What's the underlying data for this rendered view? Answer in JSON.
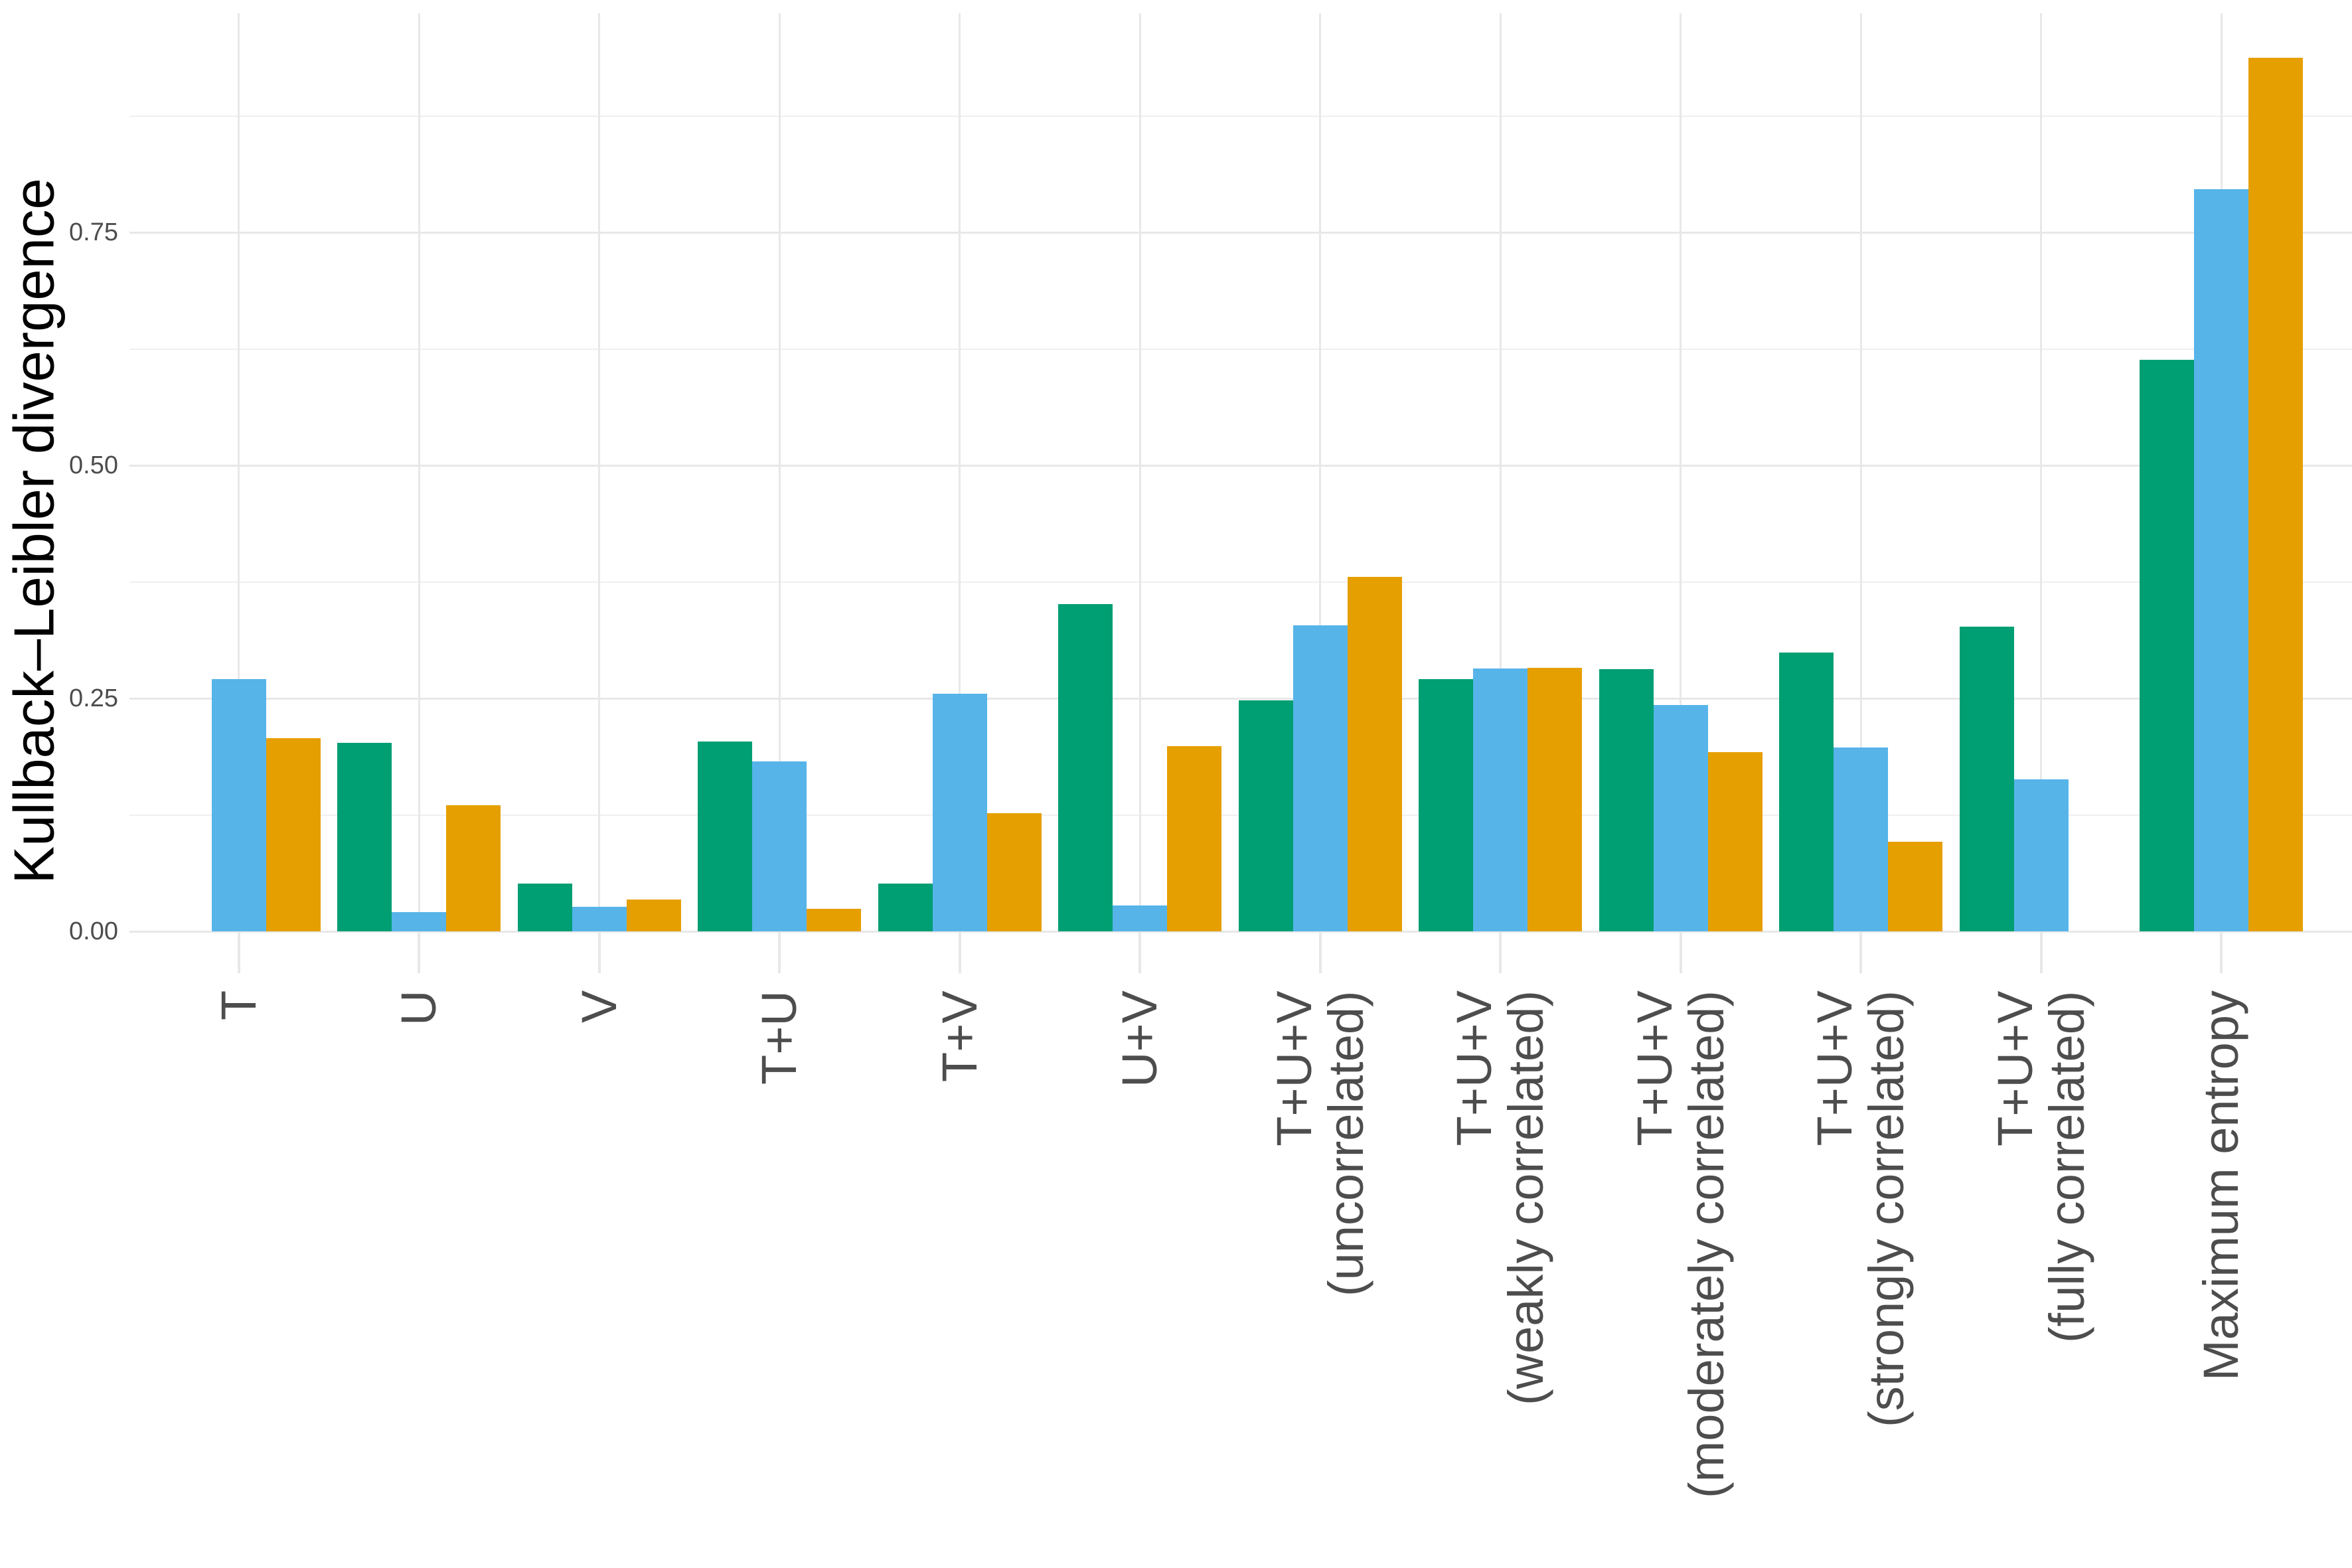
{
  "chart_data": {
    "type": "bar",
    "title": "",
    "ylabel": "Kullback–Leibler divergence",
    "xlabel": "",
    "bar_orientation": "vertical",
    "x_tick_label_rotation_deg": 90,
    "categories": [
      "T",
      "U",
      "V",
      "T+U",
      "T+V",
      "U+V",
      "T+U+V\n(uncorrelated)",
      "T+U+V\n(weakly correlated)",
      "T+U+V\n(moderately correlated)",
      "T+U+V\n(strongly correlated)",
      "T+U+V\n(fully correlated)",
      "Maximum entropy"
    ],
    "series": [
      {
        "name": "green",
        "color": "#009E73",
        "values": [
          0,
          0.202,
          0.051,
          0.204,
          0.051,
          0.351,
          0.248,
          0.271,
          0.281,
          0.299,
          0.327,
          0.613
        ]
      },
      {
        "name": "blue",
        "color": "#56B4E9",
        "values": [
          0.271,
          0.021,
          0.026,
          0.182,
          0.255,
          0.028,
          0.328,
          0.282,
          0.243,
          0.197,
          0.163,
          0.796
        ]
      },
      {
        "name": "orange",
        "color": "#E69F00",
        "values": [
          0.207,
          0.135,
          0.034,
          0.024,
          0.127,
          0.199,
          0.38,
          0.283,
          0.192,
          0.096,
          0,
          0.937
        ]
      }
    ],
    "y_axis": {
      "tick_labels": [
        "0.00",
        "0.25",
        "0.50",
        "0.75"
      ],
      "tick_values": [
        0,
        0.25,
        0.5,
        0.75
      ],
      "minor_gridline_values": [
        0.125,
        0.375,
        0.625,
        0.875
      ],
      "range": [
        0,
        0.985
      ]
    },
    "legend": {
      "visible": false
    },
    "grid": {
      "horizontal_major": true,
      "horizontal_minor": true,
      "vertical_major": true
    },
    "colors": {
      "background": "#FFFFFF",
      "gridline_major": "#E8E8E8",
      "gridline_minor": "#EFEFEF",
      "axis_text": "#4D4D4D",
      "axis_title": "#000000"
    }
  }
}
